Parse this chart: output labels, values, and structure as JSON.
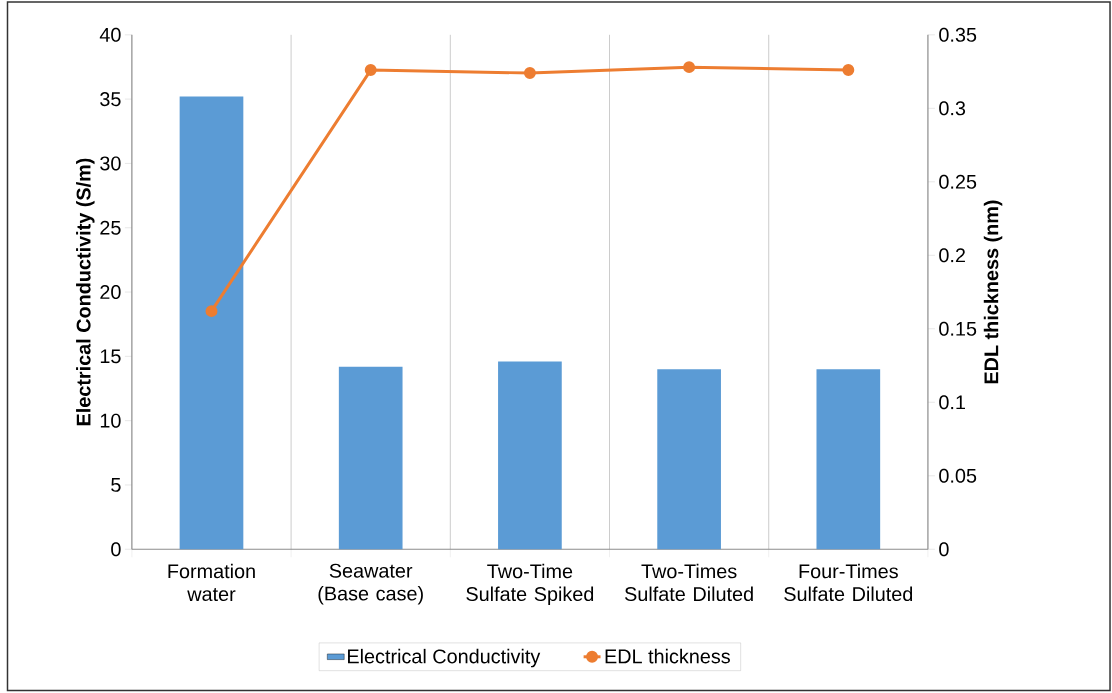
{
  "chart_data": {
    "type": "bar",
    "ylabel": "Electrical Conductivity (S/m)",
    "y2label": "EDL thickness (nm)",
    "categories": [
      "Formation water",
      "Seawater (Base case)",
      "Two-Time Sulfate Spiked",
      "Two-Times Sulfate Diluted",
      "Four-Times Sulfate Diluted"
    ],
    "series": [
      {
        "name": "Electrical Conductivity",
        "color": "#5b9bd5",
        "values": [
          35.2,
          14.2,
          14.6,
          14.0,
          14.0
        ]
      },
      {
        "name": "EDL thickness",
        "type": "line",
        "axis": "y2",
        "color": "#ed7d31",
        "marker": "circle",
        "values": [
          0.162,
          0.326,
          0.324,
          0.328,
          0.326
        ]
      }
    ],
    "ylim": [
      0,
      40
    ],
    "yticks": [
      0,
      5,
      10,
      15,
      20,
      25,
      30,
      35,
      40
    ],
    "y2lim": [
      0,
      0.35
    ],
    "y2ticks": [
      0,
      0.05,
      0.1,
      0.15,
      0.2,
      0.25,
      0.3,
      0.35
    ],
    "grid": "x",
    "legend": "bottom"
  }
}
